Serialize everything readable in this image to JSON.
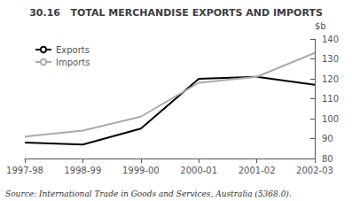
{
  "chart_data": {
    "type": "line",
    "title": "30.16   TOTAL MERCHANDISE EXPORTS AND IMPORTS",
    "ylabel": "$b",
    "source": "Source: International Trade in Goods and Services, Australia (5368.0).",
    "categories": [
      "1997-98",
      "1998-99",
      "1999-00",
      "2000-01",
      "2001-02",
      "2002-03"
    ],
    "series": [
      {
        "name": "Exports",
        "color": "#000000",
        "values": [
          88,
          87,
          95,
          120,
          121,
          117
        ]
      },
      {
        "name": "Imports",
        "color": "#aaaaaa",
        "values": [
          91,
          94,
          101,
          118,
          121,
          133
        ]
      }
    ],
    "ylim": [
      80,
      140
    ],
    "yticks": [
      80,
      90,
      100,
      110,
      120,
      130,
      140
    ],
    "grid": false,
    "legend": "upper left"
  }
}
